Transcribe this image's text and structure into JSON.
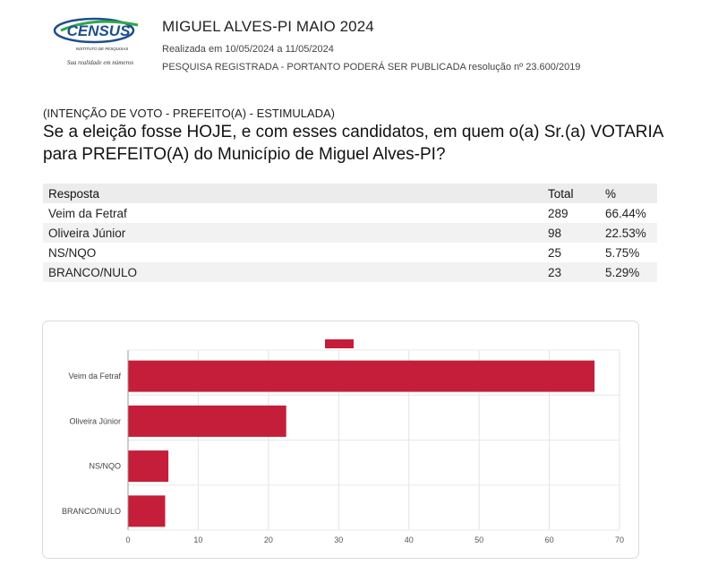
{
  "header": {
    "logo_text": "CENSUS",
    "logo_subtitle": "INSTITUTO DE PESQUISAS",
    "logo_tagline": "Sua realidade em números",
    "title": "MIGUEL ALVES-PI MAIO 2024",
    "dates": "Realizada em 10/05/2024 a 11/05/2024",
    "registration": "PESQUISA REGISTRADA - PORTANTO PODERÁ SER PUBLICADA resolução nº 23.600/2019"
  },
  "question": {
    "tag": "(INTENÇÃO DE VOTO - PREFEITO(A) - ESTIMULADA)",
    "text": "Se a eleição fosse HOJE, e com esses candidatos, em quem o(a) Sr.(a) VOTARIA para PREFEITO(A) do Município de Miguel Alves-PI?"
  },
  "table": {
    "headers": [
      "Resposta",
      "Total",
      "%"
    ],
    "rows": [
      [
        "Veim da Fetraf",
        "289",
        "66.44%"
      ],
      [
        "Oliveira Júnior",
        "98",
        "22.53%"
      ],
      [
        "NS/NQO",
        "25",
        "5.75%"
      ],
      [
        "BRANCO/NULO",
        "23",
        "5.29%"
      ]
    ]
  },
  "chart_data": {
    "type": "bar",
    "orientation": "horizontal",
    "categories": [
      "Veim da Fetraf",
      "Oliveira Júnior",
      "NS/NQO",
      "BRANCO/NULO"
    ],
    "values": [
      66.44,
      22.53,
      5.75,
      5.29
    ],
    "xlim": [
      0,
      70
    ],
    "xticks": [
      0,
      10,
      20,
      30,
      40,
      50,
      60,
      70
    ],
    "grid": true,
    "legend": "top-center",
    "colors": {
      "bar": "#c41e3a"
    }
  }
}
